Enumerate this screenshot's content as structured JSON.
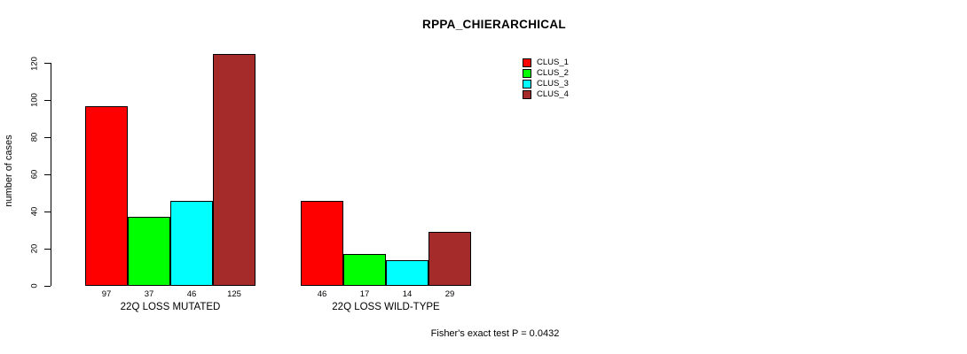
{
  "chart_data": {
    "type": "bar",
    "title": "RPPA_CHIERARCHICAL",
    "ylabel": "number of cases",
    "xlabel": "",
    "ylim": [
      0,
      120
    ],
    "yticks": [
      0,
      20,
      40,
      60,
      80,
      100,
      120
    ],
    "categories": [
      "22Q LOSS MUTATED",
      "22Q LOSS WILD-TYPE"
    ],
    "series": [
      {
        "name": "CLUS_1",
        "color": "#ff0000",
        "values": [
          97,
          46
        ]
      },
      {
        "name": "CLUS_2",
        "color": "#00ff00",
        "values": [
          37,
          17
        ]
      },
      {
        "name": "CLUS_3",
        "color": "#00ffff",
        "values": [
          46,
          14
        ]
      },
      {
        "name": "CLUS_4",
        "color": "#a52a2a",
        "values": [
          125,
          29
        ]
      }
    ],
    "bar_value_labels_shown": true,
    "bar_border_color": "#000000",
    "legend_position": "top-right",
    "grid": false,
    "annotation": "Fisher's exact test P = 0.0432"
  }
}
